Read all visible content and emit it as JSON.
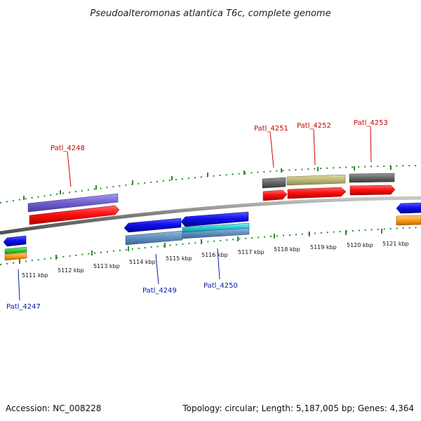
{
  "title": "Pseudoalteromonas atlantica T6c, complete genome",
  "footer": {
    "accession": "Accession: NC_008228",
    "summary": "Topology: circular; Length: 5,187,005 bp; Genes: 4,364"
  },
  "colors": {
    "backbone": "#7a7a7a",
    "tick": "#2a8a2a",
    "forward_label": "#cc0000",
    "reverse_label": "#0a1aa0",
    "cds_red": "#ff1010",
    "cds_blue": "#1010ee",
    "gene_purple": "#7060d0",
    "gene_grey": "#666666",
    "gene_khaki": "#bdb878",
    "gene_steel": "#5f8fbf",
    "gene_cyan": "#20c8d0",
    "gene_green": "#33cc33",
    "gene_orange": "#ff9a10"
  },
  "ticks": [
    {
      "label": "5111 kbp"
    },
    {
      "label": "5112 kbp"
    },
    {
      "label": "5113 kbp"
    },
    {
      "label": "5114 kbp"
    },
    {
      "label": "5115 kbp"
    },
    {
      "label": "5116 kbp"
    },
    {
      "label": "5117 kbp"
    },
    {
      "label": "5118 kbp"
    },
    {
      "label": "5119 kbp"
    },
    {
      "label": "5120 kbp"
    },
    {
      "label": "5121 kbp"
    }
  ],
  "labels": {
    "forward": [
      "Patl_4248",
      "Patl_4251",
      "Patl_4252",
      "Patl_4253"
    ],
    "reverse": [
      "Patl_4247",
      "Patl_4249",
      "Patl_4250"
    ]
  }
}
